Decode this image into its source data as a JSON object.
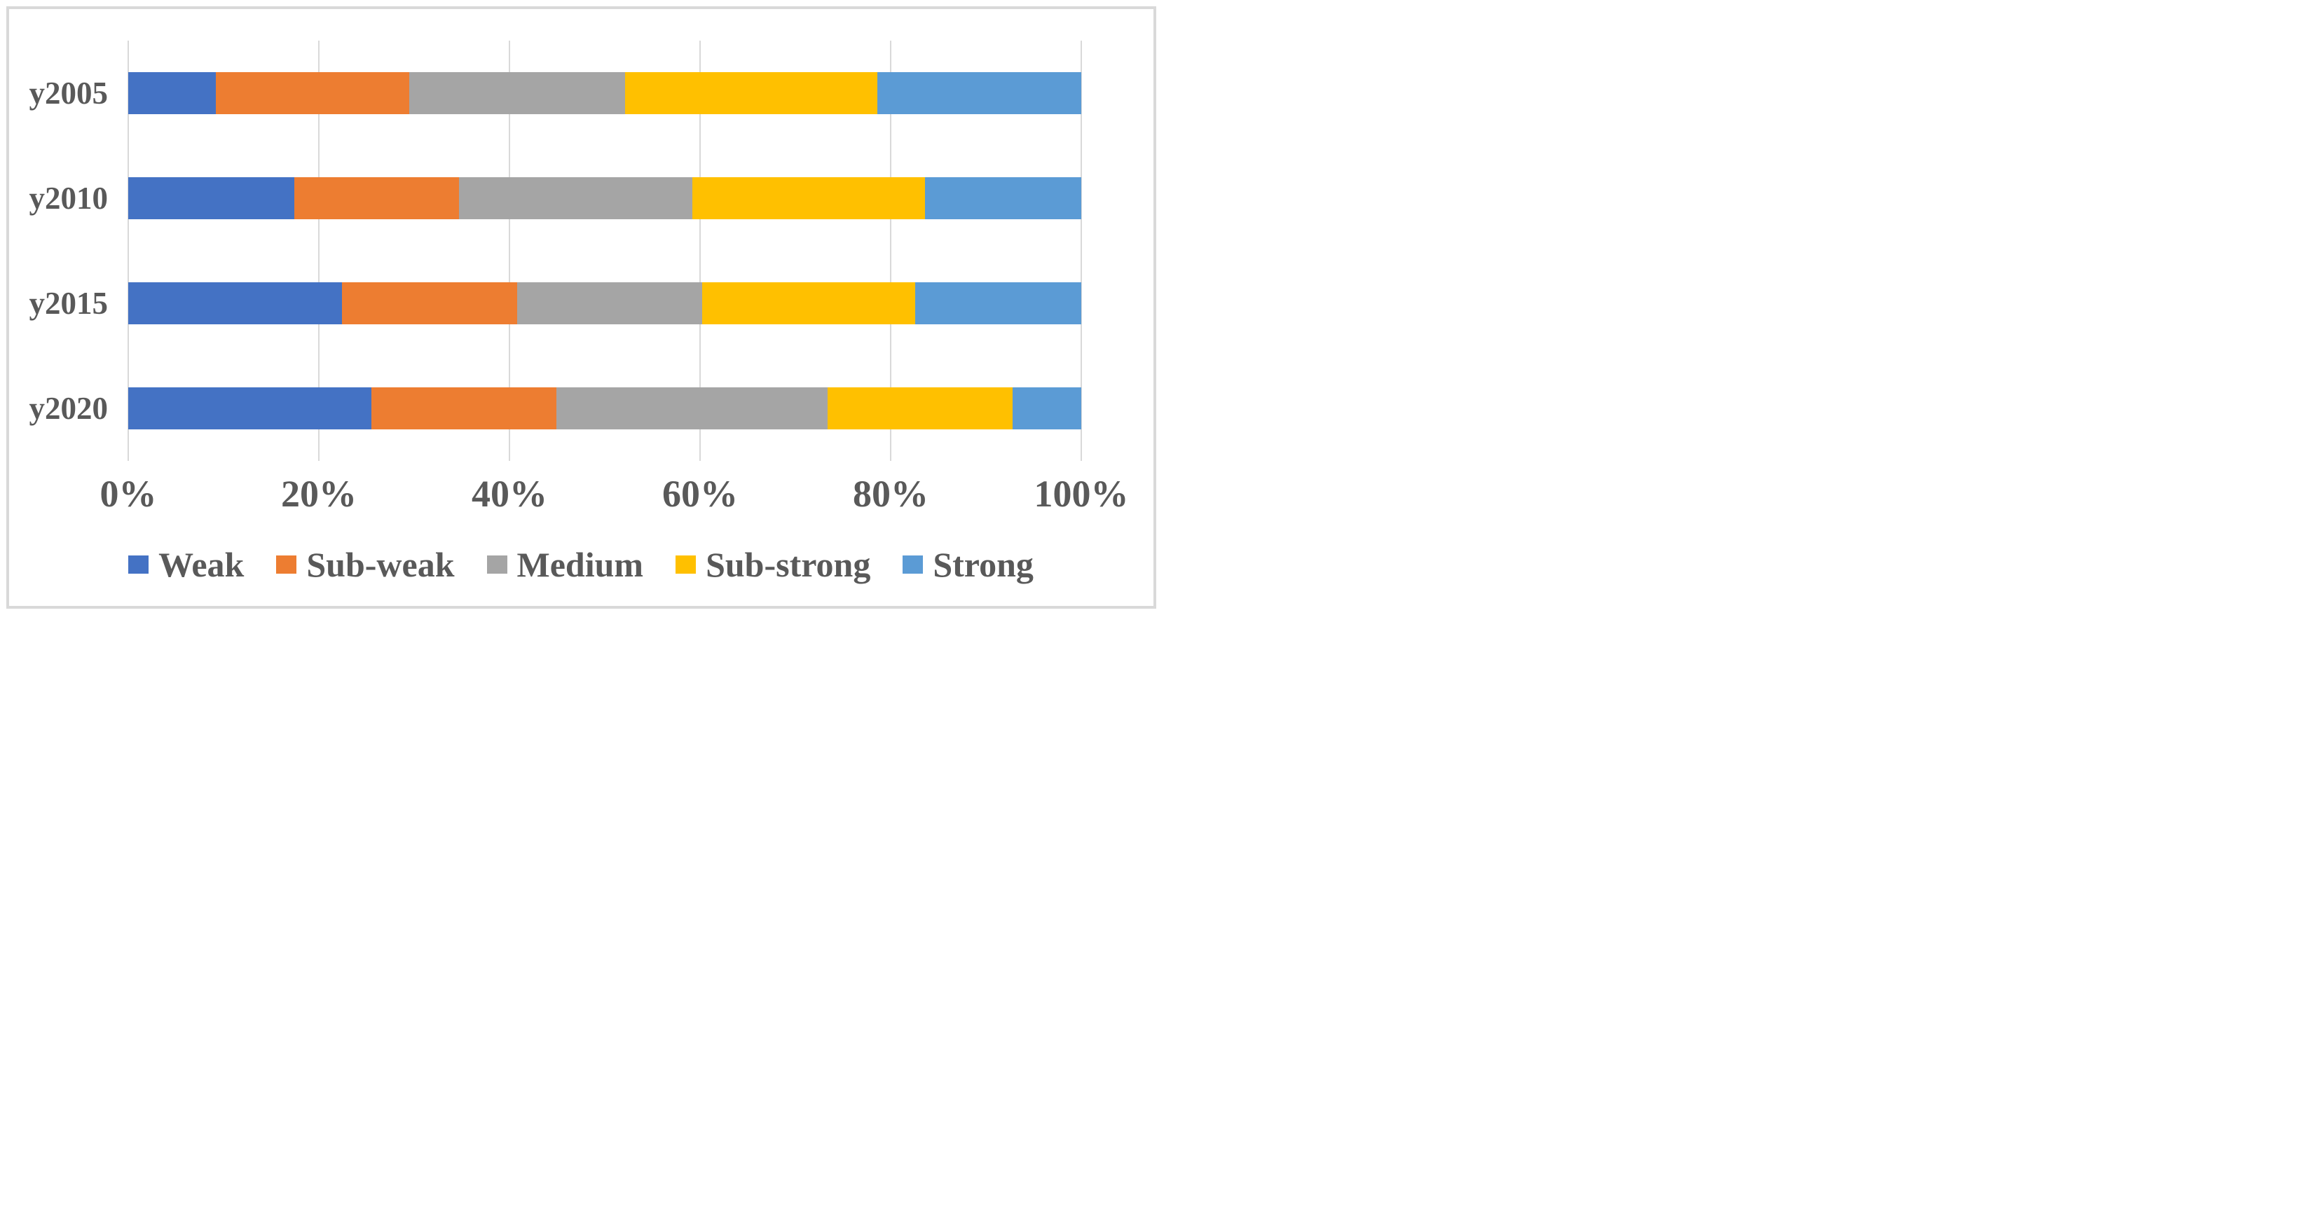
{
  "chart_data": {
    "type": "bar",
    "variant": "horizontal-stacked-100pct",
    "title": "",
    "xlabel": "",
    "ylabel": "",
    "categories": [
      "y2005",
      "y2010",
      "y2015",
      "y2020"
    ],
    "series": [
      {
        "name": "Weak",
        "color": "#4472C4",
        "values": [
          9.2,
          17.4,
          22.4,
          25.5
        ]
      },
      {
        "name": "Sub-weak",
        "color": "#ED7D31",
        "values": [
          20.3,
          17.3,
          18.4,
          19.4
        ]
      },
      {
        "name": "Medium",
        "color": "#A5A5A5",
        "values": [
          22.6,
          24.5,
          19.4,
          28.5
        ]
      },
      {
        "name": "Sub-strong",
        "color": "#FFC000",
        "values": [
          26.5,
          24.4,
          22.4,
          19.4
        ]
      },
      {
        "name": "Strong",
        "color": "#5B9BD5",
        "values": [
          21.4,
          16.4,
          17.4,
          7.2
        ]
      }
    ],
    "x_tick_labels": [
      "0%",
      "20%",
      "40%",
      "60%",
      "80%",
      "100%"
    ],
    "xlim": [
      0,
      100
    ],
    "grid": "vertical",
    "legend_position": "bottom",
    "axis_text_color": "#595959",
    "gridline_color": "#D9D9D9",
    "figure_border_color": "#D9D9D9"
  }
}
